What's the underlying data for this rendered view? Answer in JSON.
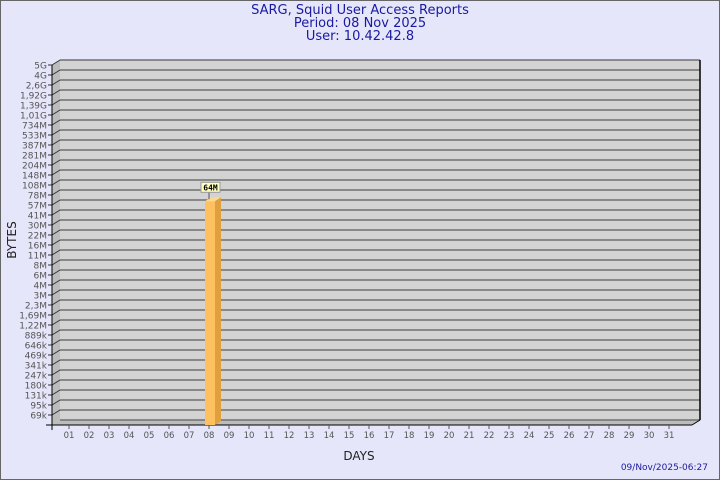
{
  "header": {
    "title": "SARG, Squid User Access Reports",
    "period": "Period: 08 Nov 2025",
    "user": "User: 10.42.42.8"
  },
  "footer": {
    "timestamp": "09/Nov/2025-06:27"
  },
  "chart_data": {
    "type": "bar",
    "xlabel": "DAYS",
    "ylabel": "BYTES",
    "y_scale": "log",
    "grid": true,
    "y_ticks": [
      "5G",
      "4G",
      "2,6G",
      "1,92G",
      "1,39G",
      "1,01G",
      "734M",
      "533M",
      "387M",
      "281M",
      "204M",
      "148M",
      "108M",
      "78M",
      "57M",
      "41M",
      "30M",
      "22M",
      "16M",
      "11M",
      "8M",
      "6M",
      "4M",
      "3M",
      "2,3M",
      "1,69M",
      "1,22M",
      "889k",
      "646k",
      "469k",
      "341k",
      "247k",
      "180k",
      "131k",
      "95k",
      "69k"
    ],
    "categories": [
      "01",
      "02",
      "03",
      "04",
      "05",
      "06",
      "07",
      "08",
      "09",
      "10",
      "11",
      "12",
      "13",
      "14",
      "15",
      "16",
      "17",
      "18",
      "19",
      "20",
      "21",
      "22",
      "23",
      "24",
      "25",
      "26",
      "27",
      "28",
      "29",
      "30",
      "31"
    ],
    "values": [
      0,
      0,
      0,
      0,
      0,
      0,
      0,
      64000000,
      0,
      0,
      0,
      0,
      0,
      0,
      0,
      0,
      0,
      0,
      0,
      0,
      0,
      0,
      0,
      0,
      0,
      0,
      0,
      0,
      0,
      0,
      0
    ],
    "data_labels": [
      {
        "category": "08",
        "label": "64M"
      }
    ],
    "colors": {
      "bar": "#ffc060",
      "bar_side": "#e0a040",
      "wall": "#d3d3d3",
      "background": "#e6e6fa",
      "title": "#1a1aa0"
    }
  }
}
